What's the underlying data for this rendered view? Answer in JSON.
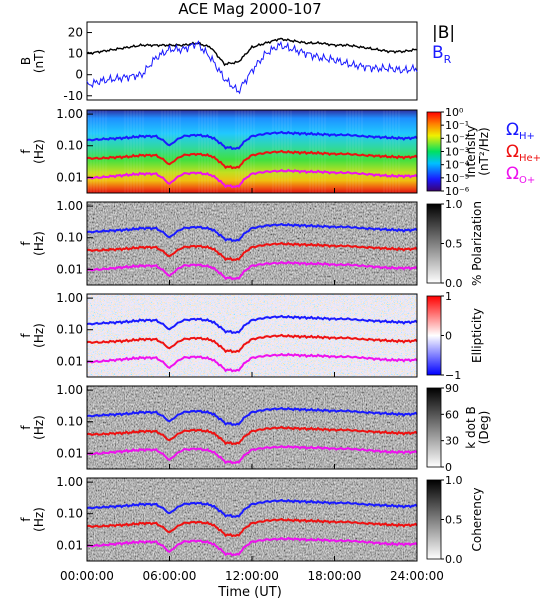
{
  "title": "ACE Mag 2000-107",
  "x_axis": {
    "label": "Time (UT)",
    "ticks": [
      "00:00:00",
      "06:00:00",
      "12:00:00",
      "18:00:00",
      "24:00:00"
    ],
    "range_hours": [
      0,
      24
    ]
  },
  "colors": {
    "btotal": "#000000",
    "br": "#1a1aff",
    "h_plus": "#1a1aff",
    "he_plus": "#ee1111",
    "o_plus": "#ee11ee"
  },
  "chart_data": [
    {
      "type": "line",
      "panel": "magnetic-field",
      "ylabel": "B\n(nT)",
      "ylim": [
        -12,
        25
      ],
      "yticks": [
        "-10",
        "0",
        "10",
        "20"
      ],
      "legend": [
        "|B|",
        "B"
      ],
      "legend_br_subscript": "R",
      "x_hours": [
        0,
        1,
        2,
        3,
        4,
        5,
        6,
        7,
        8,
        9,
        10,
        11,
        12,
        13,
        14,
        15,
        16,
        17,
        18,
        19,
        20,
        21,
        22,
        23,
        24
      ],
      "series": [
        {
          "name": "|B|",
          "values": [
            10,
            11,
            12,
            13,
            14,
            14,
            14,
            14,
            15,
            13,
            5,
            6,
            13,
            15,
            17,
            16,
            15,
            15,
            14,
            14,
            13,
            12,
            11,
            11,
            12
          ]
        },
        {
          "name": "BR",
          "values": [
            -5,
            -3,
            -2,
            -1,
            0,
            8,
            12,
            12,
            15,
            8,
            -2,
            -8,
            2,
            10,
            14,
            12,
            10,
            8,
            7,
            5,
            4,
            3,
            3,
            2,
            3
          ]
        }
      ]
    },
    {
      "type": "heatmap",
      "panel": "intensity",
      "ylabel": "f\n(Hz)",
      "yticks": [
        "1.00",
        "0.10",
        "0.01"
      ],
      "colorbar_label": "Intensity\n(nT²/Hz)",
      "colorbar_ticks": [
        "10⁰",
        "10⁻¹",
        "10⁻²",
        "10⁻³",
        "10⁻⁴",
        "10⁻⁵",
        "10⁻⁶"
      ],
      "colorscale": "rainbow"
    },
    {
      "type": "heatmap",
      "panel": "polarization",
      "ylabel": "f\n(Hz)",
      "yticks": [
        "1.00",
        "0.10",
        "0.01"
      ],
      "colorbar_label": "% Polarization",
      "colorbar_ticks": [
        "1.0",
        "0.5",
        "0.0"
      ],
      "colorscale": "gray"
    },
    {
      "type": "heatmap",
      "panel": "ellipticity",
      "ylabel": "f\n(Hz)",
      "yticks": [
        "1.00",
        "0.10",
        "0.01"
      ],
      "colorbar_label": "Ellipticity",
      "colorbar_ticks": [
        "1",
        "0",
        "−1"
      ],
      "colorscale": "blue-white-red"
    },
    {
      "type": "heatmap",
      "panel": "k-dot-b",
      "ylabel": "f\n(Hz)",
      "yticks": [
        "1.00",
        "0.10",
        "0.01"
      ],
      "colorbar_label": "k dot B\n(Deg)",
      "colorbar_ticks": [
        "90",
        "60",
        "30",
        "0"
      ],
      "colorscale": "gray"
    },
    {
      "type": "heatmap",
      "panel": "coherency",
      "ylabel": "f\n(Hz)",
      "yticks": [
        "1.00",
        "0.10",
        "0.01"
      ],
      "colorbar_label": "Coherency",
      "colorbar_ticks": [
        "1.0",
        "0.5",
        "0.0"
      ],
      "colorscale": "gray"
    }
  ],
  "gyrofrequency_lines": {
    "x_hours": [
      0,
      1,
      2,
      3,
      4,
      5,
      6,
      7,
      8,
      9,
      10,
      11,
      12,
      13,
      14,
      15,
      16,
      17,
      18,
      19,
      20,
      21,
      22,
      23,
      24
    ],
    "h_plus_hz": [
      0.15,
      0.16,
      0.17,
      0.18,
      0.2,
      0.2,
      0.1,
      0.2,
      0.22,
      0.19,
      0.09,
      0.08,
      0.2,
      0.24,
      0.26,
      0.25,
      0.24,
      0.23,
      0.22,
      0.22,
      0.2,
      0.19,
      0.18,
      0.17,
      0.18
    ],
    "he_plus_hz": [
      0.04,
      0.04,
      0.043,
      0.045,
      0.05,
      0.05,
      0.025,
      0.05,
      0.055,
      0.048,
      0.022,
      0.02,
      0.05,
      0.06,
      0.065,
      0.062,
      0.06,
      0.058,
      0.055,
      0.055,
      0.05,
      0.048,
      0.045,
      0.043,
      0.045
    ],
    "o_plus_hz": [
      0.0095,
      0.01,
      0.011,
      0.012,
      0.013,
      0.013,
      0.006,
      0.013,
      0.014,
      0.012,
      0.0055,
      0.005,
      0.013,
      0.015,
      0.016,
      0.016,
      0.015,
      0.015,
      0.014,
      0.014,
      0.013,
      0.012,
      0.011,
      0.011,
      0.011
    ]
  },
  "gyro_labels": [
    {
      "symbol": "Ω",
      "sub": "H+",
      "color": "#1a1aff"
    },
    {
      "symbol": "Ω",
      "sub": "He+",
      "color": "#ee1111"
    },
    {
      "symbol": "Ω",
      "sub": "O+",
      "color": "#ee11ee"
    }
  ]
}
